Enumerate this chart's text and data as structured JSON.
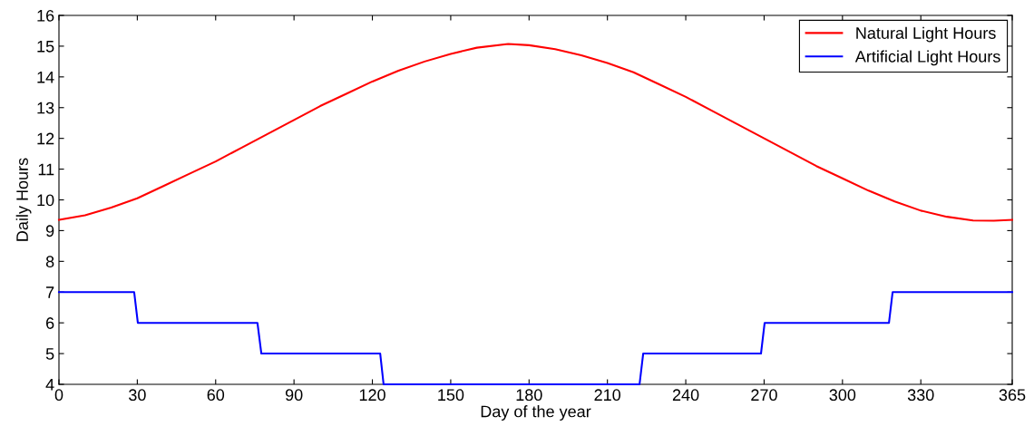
{
  "chart_data": {
    "type": "line",
    "xlabel": "Day of the year",
    "ylabel": "Daily Hours",
    "series": [
      {
        "name": "Natural Light Hours",
        "color": "#ff0000",
        "x": [
          0,
          10,
          20,
          30,
          40,
          50,
          60,
          70,
          80,
          90,
          100,
          110,
          120,
          130,
          140,
          150,
          160,
          172,
          180,
          190,
          200,
          210,
          220,
          230,
          240,
          250,
          260,
          270,
          280,
          290,
          300,
          310,
          320,
          330,
          340,
          350,
          358,
          365
        ],
        "values": [
          9.35,
          9.5,
          9.75,
          10.05,
          10.45,
          10.85,
          11.25,
          11.7,
          12.15,
          12.6,
          13.05,
          13.45,
          13.85,
          14.2,
          14.5,
          14.75,
          14.95,
          15.07,
          15.03,
          14.9,
          14.7,
          14.45,
          14.15,
          13.75,
          13.35,
          12.9,
          12.45,
          12.0,
          11.55,
          11.1,
          10.7,
          10.3,
          9.95,
          9.65,
          9.45,
          9.33,
          9.32,
          9.35
        ]
      },
      {
        "name": "Artificial Light Hours",
        "color": "#0000ff",
        "x": [
          0,
          28.8,
          30.2,
          76,
          77.5,
          123,
          124.3,
          222.3,
          223.7,
          268.8,
          270.2,
          317.8,
          319.2,
          365
        ],
        "values": [
          7,
          7,
          6,
          6,
          5,
          5,
          4,
          4,
          5,
          5,
          6,
          6,
          7,
          7
        ]
      }
    ],
    "xlim": [
      0,
      365
    ],
    "xticks": [
      0,
      30,
      60,
      90,
      120,
      150,
      180,
      210,
      240,
      270,
      300,
      330,
      365
    ],
    "ylim": [
      4,
      16
    ],
    "yticks": [
      4,
      5,
      6,
      7,
      8,
      9,
      10,
      11,
      12,
      13,
      14,
      15,
      16
    ],
    "grid": false,
    "legend": "top right",
    "marker": "none",
    "line_style": "solid"
  }
}
